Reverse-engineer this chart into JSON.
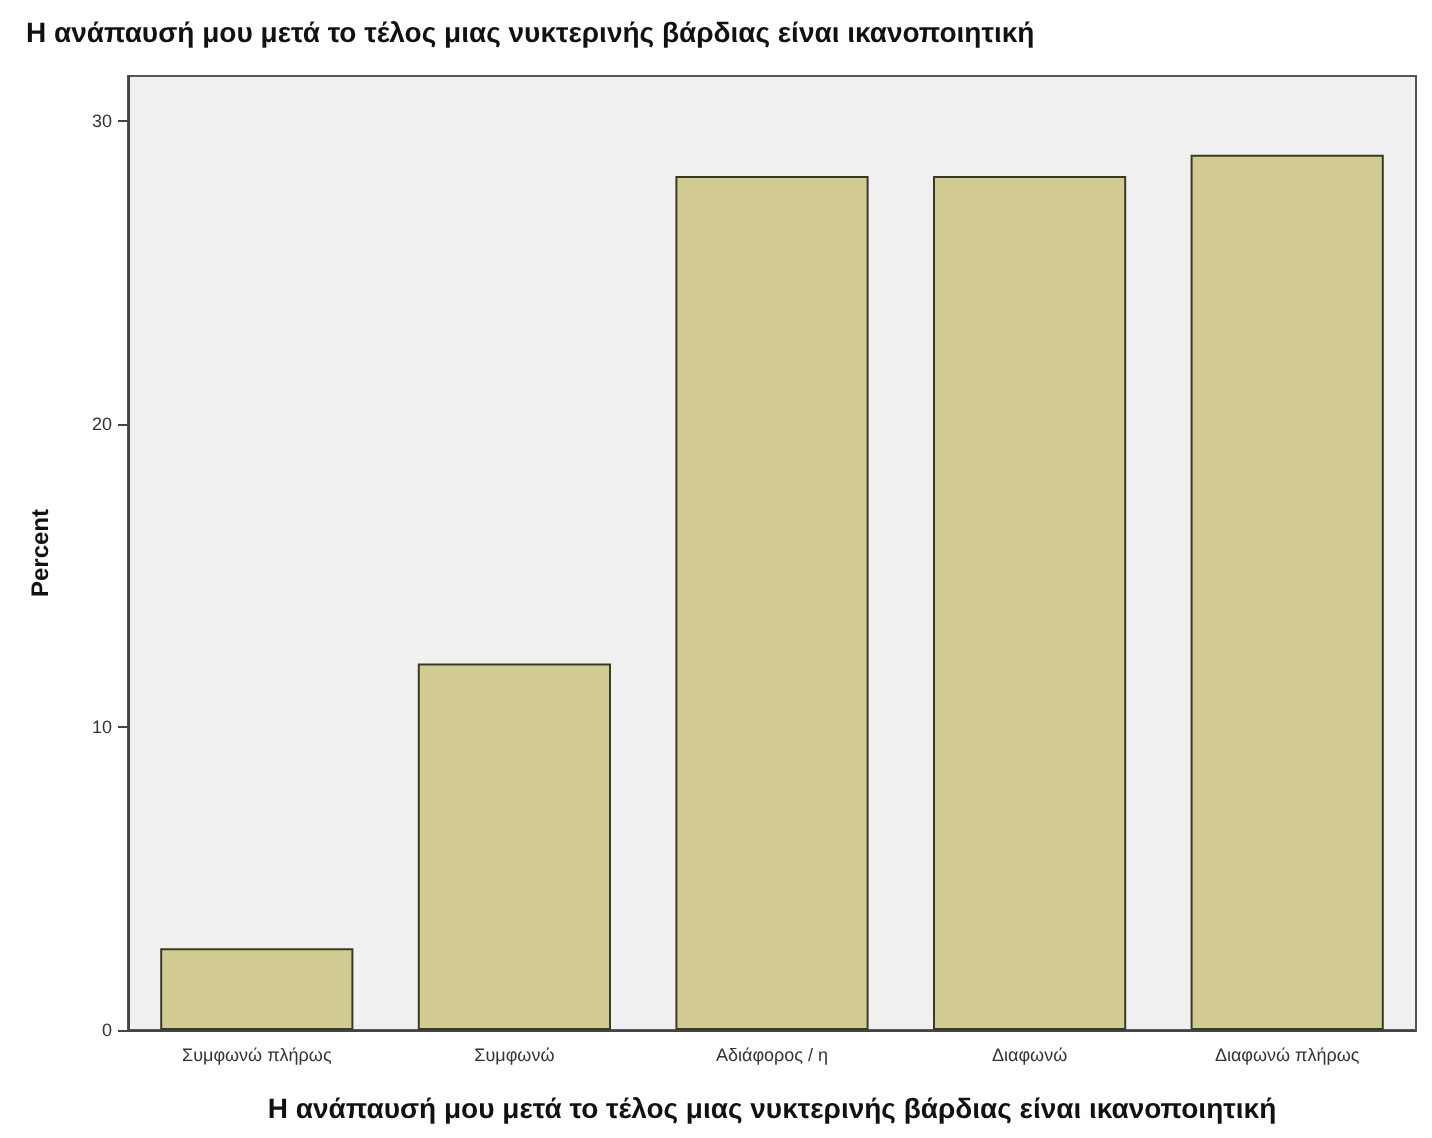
{
  "chart_data": {
    "type": "bar",
    "title": "Η ανάπαυσή μου μετά το τέλος μιας νυκτερινής βάρδιας είναι ικανοποιητική",
    "xlabel": "Η ανάπαυσή μου μετά το τέλος μιας νυκτερινής βάρδιας είναι ικανοποιητική",
    "ylabel": "Percent",
    "categories": [
      "Συμφωνώ πλήρως",
      "Συμφωνώ",
      "Αδιάφορος / η",
      "Διαφωνώ",
      "Διαφωνώ πλήρως"
    ],
    "values": [
      2.7,
      12.1,
      28.2,
      28.2,
      28.9
    ],
    "color": "#d3cc92",
    "ylim": [
      0,
      31.5
    ],
    "yticks": [
      0,
      10,
      20,
      30
    ],
    "grid": false
  }
}
